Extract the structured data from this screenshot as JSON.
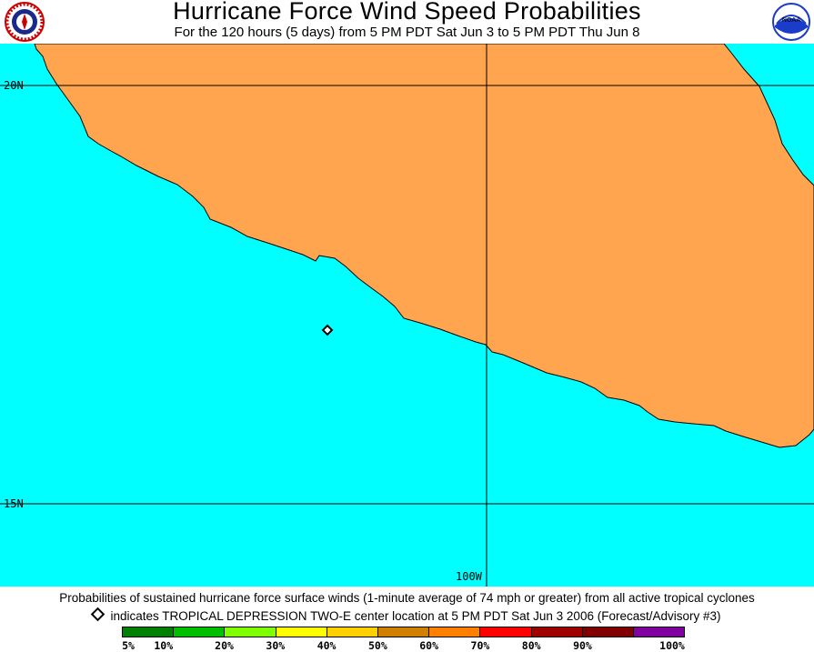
{
  "header": {
    "title": "Hurricane Force Wind Speed Probabilities",
    "subtitle": "For the 120 hours (5 days) from 5 PM PDT Sat Jun 3 to 5 PM PDT Thu Jun 8",
    "logo_left_text": "NATIONAL WEATHER SERVICE",
    "logo_right_text": "NOAA"
  },
  "map": {
    "ocean_color": "#00ffff",
    "land_color": "#ffa54f",
    "lat_labels": [
      "20N",
      "15N"
    ],
    "lon_labels": [
      "100W"
    ],
    "storm_marker_name": "tropical-depression-two-e-center"
  },
  "footer": {
    "description": "Probabilities of sustained hurricane force surface winds (1-minute average of 74 mph or greater) from all active tropical cyclones",
    "marker_text": "indicates TROPICAL DEPRESSION TWO-E center location at 5 PM PDT Sat Jun 3 2006 (Forecast/Advisory #3)"
  },
  "legend": {
    "colors": [
      "#008000",
      "#00bf00",
      "#80ff00",
      "#ffff00",
      "#ffd000",
      "#d08000",
      "#ff8000",
      "#ff0000",
      "#a00000",
      "#800000",
      "#8000a0"
    ],
    "labels": [
      "5%",
      "10%",
      "20%",
      "30%",
      "40%",
      "50%",
      "60%",
      "70%",
      "80%",
      "90%",
      "100%"
    ]
  }
}
